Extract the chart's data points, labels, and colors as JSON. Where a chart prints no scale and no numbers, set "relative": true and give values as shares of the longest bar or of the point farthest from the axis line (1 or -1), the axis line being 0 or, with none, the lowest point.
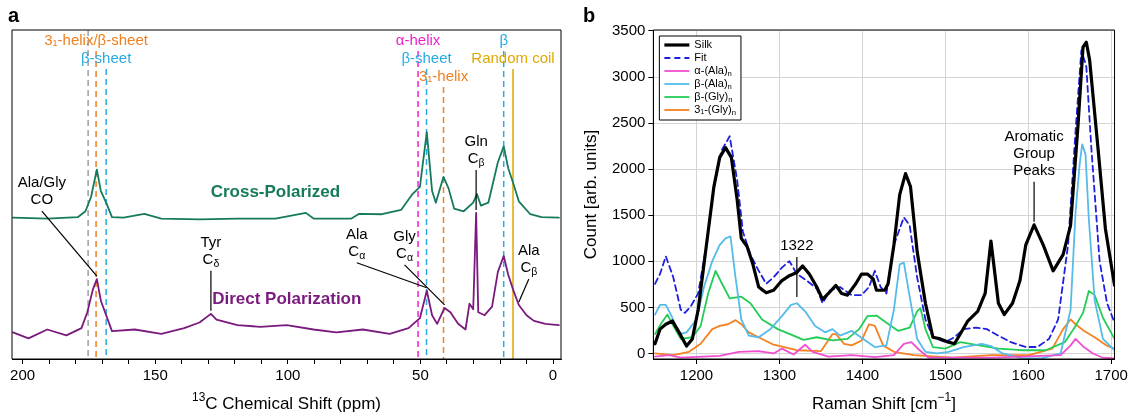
{
  "chart_data": [
    {
      "type": "line",
      "title": "a",
      "xlabel": "$^{13}$C Chemical Shift (ppm)",
      "relative": true,
      "xlim": [
        204,
        -3
      ],
      "xticks": [
        200,
        {
          "value": 190,
          "label": null
        },
        {
          "value": 180,
          "label": null
        },
        {
          "value": 170,
          "label": null
        },
        {
          "value": 160,
          "label": null
        },
        150,
        {
          "value": 140,
          "label": null
        },
        {
          "value": 130,
          "label": null
        },
        {
          "value": 120,
          "label": null
        },
        {
          "value": 110,
          "label": null
        },
        100,
        {
          "value": 90,
          "label": null
        },
        {
          "value": 80,
          "label": null
        },
        {
          "value": 70,
          "label": null
        },
        {
          "value": 60,
          "label": null
        },
        50,
        {
          "value": 40,
          "label": null
        },
        {
          "value": 30,
          "label": null
        },
        {
          "value": 20,
          "label": null
        },
        {
          "value": 10,
          "label": null
        },
        0
      ],
      "tick_labels": "x",
      "grid": false,
      "legend": false,
      "marker": "none",
      "line_style": "solid",
      "series": [
        {
          "name": "Cross-Polarized",
          "color": "#167a5c",
          "x": [
            203.6,
            190.7,
            179.2,
            176.3,
            174.2,
            172.0,
            170.5,
            168.5,
            166.3,
            162,
            154.1,
            147.7,
            133.3,
            119,
            104.7,
            93.2,
            90.3,
            76,
            73.1,
            64.5,
            57.3,
            53,
            50.2,
            47.6,
            45.6,
            44.2,
            41.3,
            39.4,
            37.3,
            33.7,
            30.1,
            28.7,
            27.2,
            24.4,
            20.8,
            18.6,
            16.9,
            15.1,
            12.9,
            8.6,
            4.3,
            -2.2
          ],
          "values": [
            0.623,
            0.619,
            0.625,
            0.651,
            0.714,
            0.835,
            0.74,
            0.689,
            0.625,
            0.623,
            0.64,
            0.619,
            0.615,
            0.619,
            0.619,
            0.644,
            0.619,
            0.619,
            0.64,
            0.638,
            0.657,
            0.727,
            0.759,
            1.0,
            0.74,
            0.689,
            0.803,
            0.752,
            0.663,
            0.651,
            0.689,
            0.727,
            0.676,
            0.689,
            0.867,
            0.937,
            0.841,
            0.778,
            0.695,
            0.638,
            0.625,
            0.623
          ]
        },
        {
          "name": "Direct Polarization",
          "color": "#7b1a7e",
          "x": [
            203.6,
            197.8,
            190.7,
            183.5,
            177.8,
            175.6,
            173.5,
            172.0,
            170.5,
            168.5,
            166.3,
            157.7,
            147.7,
            139.1,
            133.3,
            129.0,
            126.9,
            119,
            110.4,
            100.4,
            90.3,
            81.7,
            71.7,
            61.6,
            54.5,
            50.2,
            47.6,
            45.6,
            43.7,
            40.9,
            38.7,
            35.8,
            33.0,
            31.5,
            30.1,
            29.0,
            28.2,
            25.8,
            23.0,
            20.8,
            18.6,
            16.9,
            15.1,
            12.9,
            10.0,
            7.2,
            2.9,
            -2.2
          ],
          "values": [
            0.117,
            0.091,
            0.13,
            0.104,
            0.136,
            0.206,
            0.307,
            0.352,
            0.257,
            0.193,
            0.123,
            0.13,
            0.111,
            0.136,
            0.161,
            0.199,
            0.174,
            0.149,
            0.142,
            0.149,
            0.13,
            0.117,
            0.13,
            0.111,
            0.136,
            0.18,
            0.301,
            0.193,
            0.155,
            0.225,
            0.206,
            0.155,
            0.13,
            0.244,
            0.219,
            0.644,
            0.206,
            0.193,
            0.231,
            0.384,
            0.454,
            0.371,
            0.307,
            0.238,
            0.193,
            0.168,
            0.155,
            0.149
          ]
        }
      ],
      "ref_lines": [
        {
          "axis": "x",
          "value": 175.3,
          "color": "#a0a0a0",
          "line_style": "dashed"
        },
        {
          "axis": "x",
          "value": 172.3,
          "label": "3₁-helix/β-sheet",
          "color": "#f08020",
          "line_style": "dashed"
        },
        {
          "axis": "x",
          "value": 168.5,
          "label": "β-sheet",
          "color": "#29abe2",
          "line_style": "dashed"
        },
        {
          "axis": "x",
          "value": 50.9,
          "label": "α-helix",
          "color": "#ee22cc",
          "line_style": "dashed"
        },
        {
          "axis": "x",
          "value": 47.7,
          "label": "β-sheet",
          "color": "#29abe2",
          "line_style": "dashed"
        },
        {
          "axis": "x",
          "value": 41.3,
          "label": "3₁-helix",
          "color": "#f08020",
          "line_style": "dashed"
        },
        {
          "axis": "x",
          "value": 18.6,
          "label": "β",
          "color": "#29abe2",
          "line_style": "dashed"
        },
        {
          "axis": "x",
          "value": 15.1,
          "label": "Random coil",
          "color": "#e0a800",
          "line_style": "solid"
        }
      ],
      "annotations": [
        {
          "text": "Ala/Gly CO",
          "x": 172.0,
          "y": 0.352
        },
        {
          "text": "Tyr C$_{δ}$",
          "x": 129.0,
          "y": 0.199
        },
        {
          "text": "Ala C$_{α}$",
          "x": 47.6,
          "y": 0.301
        },
        {
          "text": "Gly C$_{α}$",
          "x": 40.9,
          "y": 0.225
        },
        {
          "text": "Gln C$_{β}$",
          "x": 29.0,
          "y": 0.644
        },
        {
          "text": "Ala C$_{β}$",
          "x": 12.9,
          "y": 0.238
        }
      ]
    },
    {
      "type": "line",
      "title": "b",
      "xlabel": "Raman Shift [cm$^{−1}$]",
      "ylabel": "Count [arb. units]",
      "xlim": [
        1148,
        1704
      ],
      "ylim": [
        -60,
        3510
      ],
      "xticks": [
        1200,
        1300,
        1400,
        1500,
        1600,
        1700
      ],
      "yticks": [
        0,
        500,
        1000,
        1500,
        2000,
        2500,
        3000,
        3500
      ],
      "grid": true,
      "legend": "top left",
      "marker": "none",
      "line_style": "solid",
      "series": [
        {
          "name": "Silk",
          "color": "#000000",
          "x": [
            1150,
            1156,
            1163,
            1171,
            1179,
            1188,
            1195,
            1202,
            1212,
            1221,
            1228,
            1235,
            1242,
            1249,
            1254,
            1261,
            1268,
            1275,
            1284,
            1293,
            1303,
            1312,
            1321,
            1328,
            1336,
            1345,
            1352,
            1359,
            1368,
            1375,
            1382,
            1392,
            1399,
            1406,
            1413,
            1417,
            1427,
            1431,
            1438,
            1445,
            1452,
            1458,
            1466,
            1476,
            1485,
            1494,
            1504,
            1511,
            1518,
            1527,
            1539,
            1548,
            1555,
            1564,
            1571,
            1581,
            1590,
            1597,
            1607,
            1618,
            1630,
            1642,
            1651,
            1660,
            1666,
            1670,
            1674,
            1684,
            1693,
            1704
          ],
          "values": [
            105,
            264,
            317,
            352,
            229,
            81,
            158,
            475,
            1178,
            1811,
            2128,
            2234,
            2128,
            1671,
            1249,
            1161,
            967,
            721,
            658,
            686,
            791,
            844,
            879,
            950,
            862,
            721,
            587,
            651,
            739,
            651,
            633,
            756,
            862,
            862,
            809,
            686,
            686,
            756,
            1178,
            1724,
            1952,
            1811,
            1108,
            545,
            176,
            158,
            123,
            105,
            211,
            352,
            457,
            651,
            1220,
            545,
            422,
            545,
            791,
            1178,
            1396,
            1178,
            897,
            1073,
            1389,
            2480,
            3324,
            3377,
            3183,
            2234,
            1354,
            739
          ]
        },
        {
          "name": "Fit",
          "color": "#1f1fe0",
          "line_style": "dashed",
          "x": [
            1150,
            1156,
            1163,
            1172,
            1181,
            1186,
            1193,
            1202,
            1212,
            1221,
            1230,
            1240,
            1249,
            1256,
            1265,
            1275,
            1284,
            1293,
            1303,
            1312,
            1321,
            1333,
            1345,
            1352,
            1361,
            1373,
            1387,
            1399,
            1408,
            1415,
            1422,
            1429,
            1438,
            1450,
            1457,
            1466,
            1476,
            1485,
            1500,
            1511,
            1522,
            1537,
            1550,
            1564,
            1579,
            1597,
            1611,
            1625,
            1636,
            1648,
            1657,
            1664,
            1670,
            1676,
            1686,
            1695,
            1704
          ],
          "values": [
            756,
            862,
            1055,
            827,
            475,
            440,
            510,
            651,
            1178,
            1811,
            2198,
            2357,
            1882,
            1319,
            1073,
            897,
            756,
            827,
            932,
            1002,
            862,
            791,
            703,
            545,
            686,
            721,
            633,
            633,
            721,
            897,
            721,
            651,
            1178,
            1477,
            1389,
            827,
            369,
            176,
            123,
            176,
            264,
            281,
            264,
            193,
            123,
            70,
            70,
            158,
            369,
            1178,
            2409,
            3289,
            3113,
            2234,
            1002,
            545,
            334
          ]
        },
        {
          "name": "α-(Ala)$_{n}$",
          "color": "#f050d0",
          "x": [
            1150,
            1167,
            1181,
            1228,
            1251,
            1275,
            1293,
            1303,
            1317,
            1331,
            1340,
            1359,
            1387,
            1415,
            1438,
            1450,
            1459,
            1469,
            1480,
            1555,
            1639,
            1651,
            1657,
            1667,
            1678,
            1690,
            1704
          ],
          "values": [
            -35,
            -18,
            -46,
            -25,
            18,
            25,
            0,
            53,
            -11,
            95,
            18,
            -35,
            -18,
            -39,
            -18,
            105,
            123,
            35,
            -46,
            -46,
            -18,
            88,
            158,
            70,
            0,
            -46,
            -53
          ]
        },
        {
          "name": "β-(Ala)$_{n}$",
          "color": "#55bbe8",
          "x": [
            1150,
            1156,
            1163,
            1170,
            1179,
            1188,
            1200,
            1209,
            1219,
            1228,
            1235,
            1241,
            1247,
            1254,
            1263,
            1275,
            1289,
            1303,
            1314,
            1321,
            1331,
            1343,
            1355,
            1364,
            1373,
            1387,
            1401,
            1415,
            1429,
            1438,
            1445,
            1450,
            1457,
            1466,
            1476,
            1490,
            1504,
            1522,
            1544,
            1555,
            1569,
            1593,
            1616,
            1639,
            1651,
            1657,
            1662,
            1665,
            1669,
            1673,
            1680,
            1690,
            1704
          ],
          "values": [
            422,
            528,
            528,
            405,
            211,
            229,
            369,
            721,
            1002,
            1178,
            1249,
            1270,
            827,
            369,
            193,
            176,
            264,
            405,
            528,
            545,
            457,
            299,
            229,
            264,
            193,
            246,
            158,
            70,
            88,
            475,
            967,
            985,
            616,
            158,
            18,
            0,
            18,
            70,
            105,
            81,
            0,
            -53,
            -53,
            0,
            475,
            1530,
            2058,
            2269,
            2163,
            1460,
            580,
            158,
            35
          ]
        },
        {
          "name": "β-(Gly)$_{n}$",
          "color": "#22cc55",
          "x": [
            1150,
            1158,
            1165,
            1172,
            1181,
            1195,
            1205,
            1214,
            1223,
            1230,
            1240,
            1254,
            1265,
            1279,
            1298,
            1317,
            1329,
            1345,
            1364,
            1382,
            1396,
            1406,
            1417,
            1429,
            1443,
            1457,
            1466,
            1470,
            1476,
            1485,
            1500,
            1518,
            1541,
            1564,
            1593,
            1621,
            1644,
            1657,
            1666,
            1673,
            1680,
            1690,
            1704
          ],
          "values": [
            211,
            334,
            422,
            299,
            158,
            176,
            299,
            651,
            897,
            770,
            598,
            616,
            545,
            369,
            264,
            193,
            148,
            176,
            141,
            158,
            264,
            405,
            411,
            334,
            246,
            281,
            457,
            492,
            264,
            70,
            53,
            123,
            88,
            53,
            35,
            35,
            123,
            299,
            440,
            679,
            633,
            387,
            158
          ]
        },
        {
          "name": "3₁-(Gly)$_{n}$",
          "color": "#f58220",
          "x": [
            1150,
            1172,
            1191,
            1205,
            1219,
            1228,
            1238,
            1247,
            1254,
            1263,
            1275,
            1293,
            1321,
            1350,
            1364,
            1368,
            1378,
            1387,
            1399,
            1408,
            1415,
            1425,
            1438,
            1462,
            1509,
            1555,
            1601,
            1629,
            1642,
            1651,
            1657,
            1667,
            1680,
            1694,
            1704
          ],
          "values": [
            0,
            -18,
            18,
            105,
            264,
            299,
            317,
            362,
            317,
            229,
            176,
            95,
            35,
            25,
            211,
            211,
            105,
            88,
            141,
            317,
            299,
            88,
            18,
            -18,
            -46,
            -18,
            -18,
            53,
            264,
            369,
            317,
            246,
            176,
            88,
            53
          ]
        }
      ],
      "annotations": [
        {
          "text": "1322",
          "x": 1321,
          "y": 580
        },
        {
          "text": "Aromatic Group Peaks",
          "x": 1607,
          "y": 1396
        }
      ]
    }
  ]
}
